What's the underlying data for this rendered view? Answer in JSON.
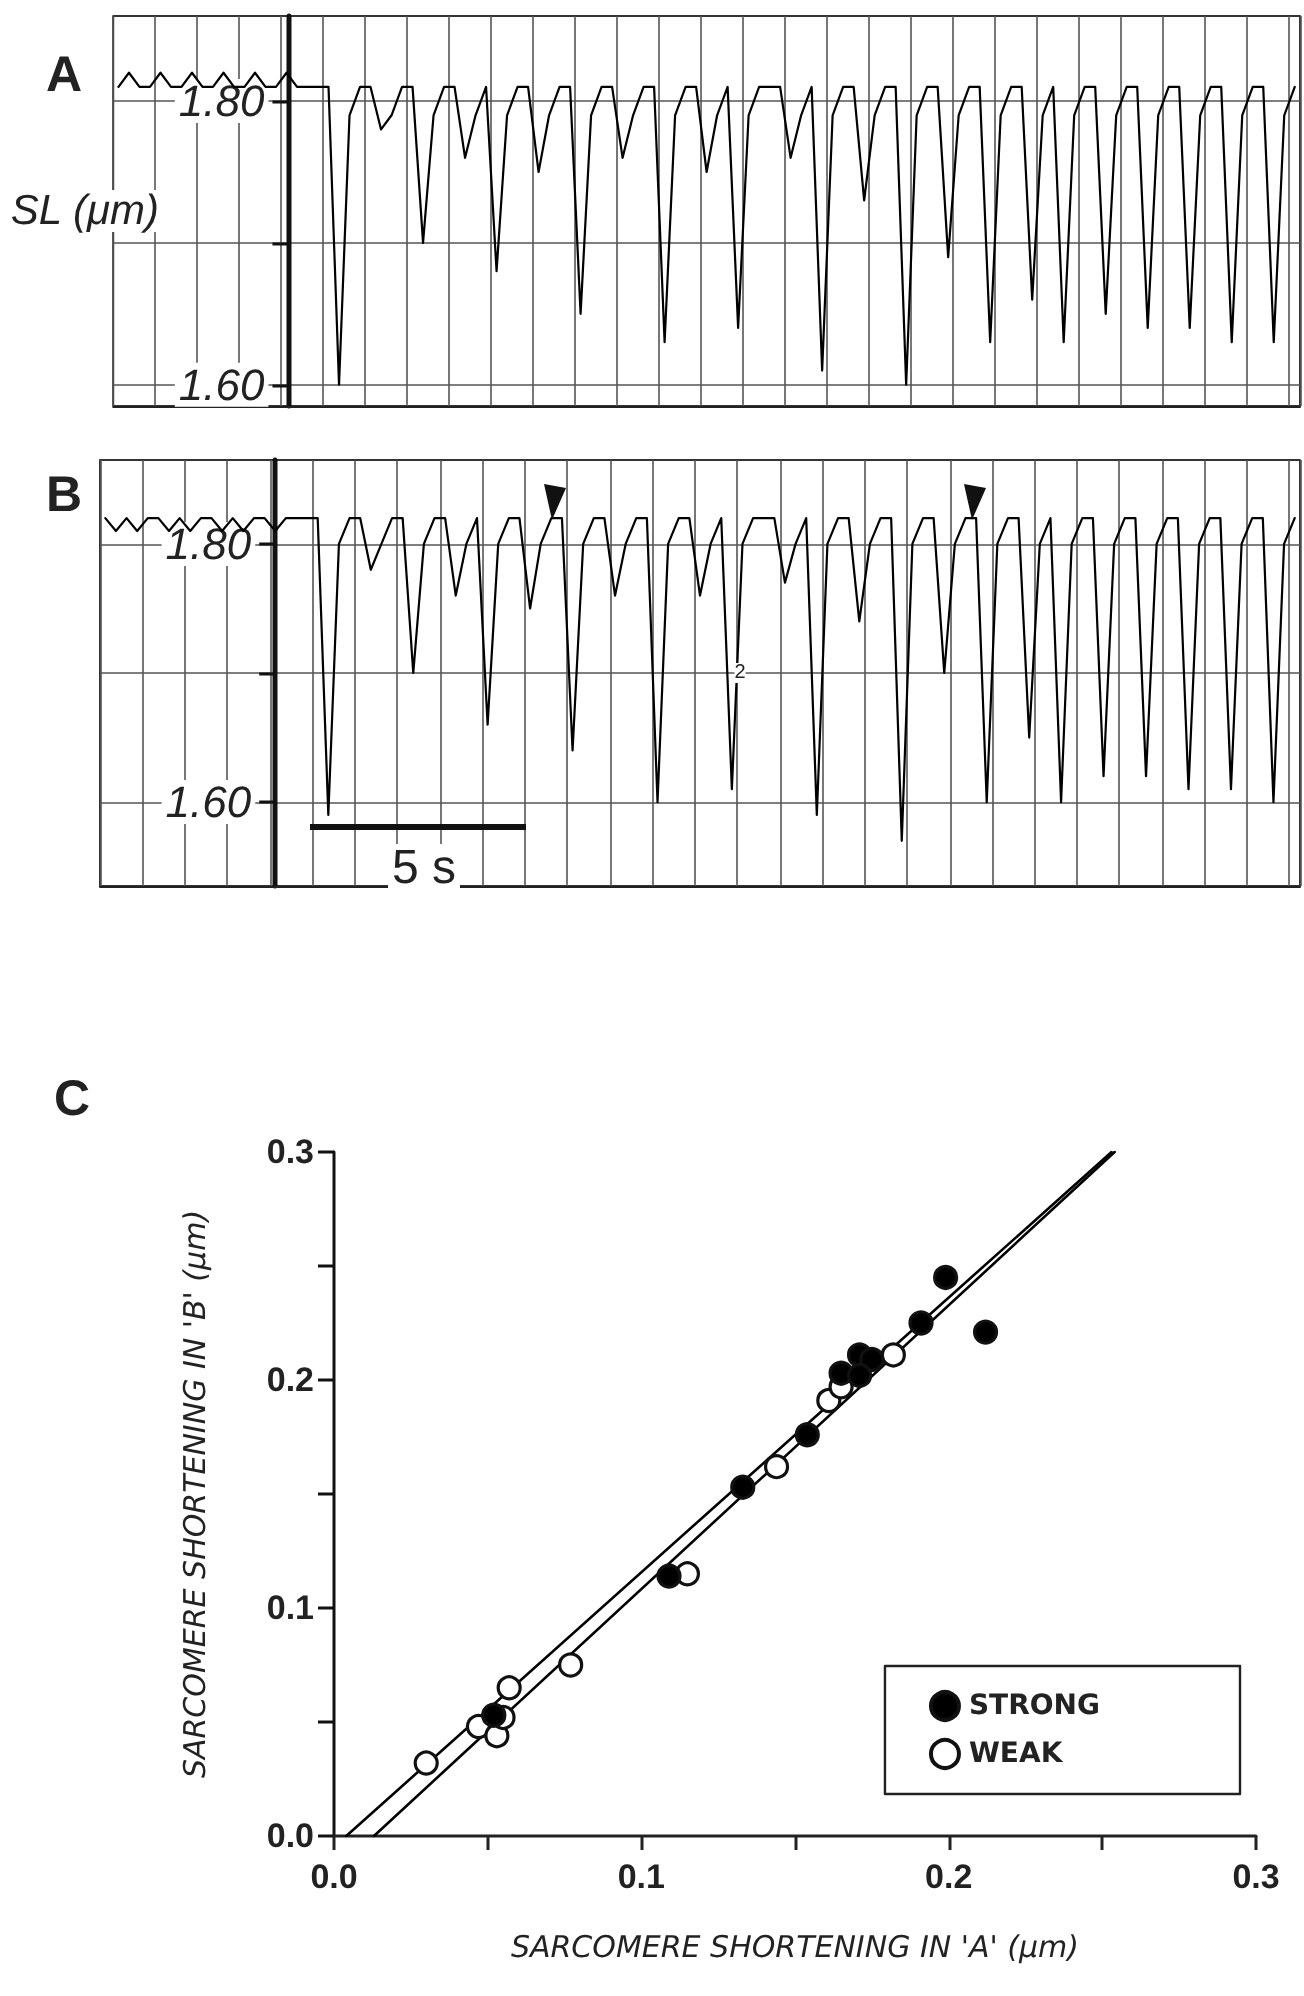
{
  "chart_data": [
    {
      "type": "line",
      "title": "A",
      "ylabel": "SL (μm)",
      "color": "#000000",
      "marker": "none",
      "grid": true,
      "tick_labels": "y",
      "categories": [
        null,
        null,
        null,
        null,
        null,
        null,
        null,
        null,
        null,
        null,
        null,
        null,
        null,
        null,
        null,
        null,
        null,
        null,
        null,
        null,
        null,
        null,
        null,
        null,
        null,
        null,
        null,
        null,
        null,
        null,
        null,
        null,
        null,
        null,
        null,
        null,
        null,
        null,
        null,
        null,
        null,
        null,
        null,
        null,
        null,
        null,
        null,
        null,
        null,
        null,
        null,
        null,
        null,
        null,
        null,
        null,
        null,
        null,
        null,
        null,
        null,
        null,
        null,
        null,
        null,
        null,
        null,
        null,
        null,
        null,
        null,
        null,
        null,
        null,
        null,
        null,
        null,
        null,
        null,
        null,
        null,
        null,
        null,
        null,
        null,
        null,
        null,
        null,
        null,
        null,
        null,
        null,
        null,
        null,
        null,
        null,
        null,
        null,
        null,
        null,
        null,
        null,
        null,
        null,
        null,
        null,
        null,
        null,
        null,
        null,
        null,
        null,
        null
      ],
      "ylim": [
        1.585,
        1.86
      ],
      "yticks": [
        {
          "value": 1.6,
          "label": "1.60"
        },
        {
          "value": 1.7,
          "label": null
        },
        {
          "value": 1.8,
          "label": "1.80"
        }
      ],
      "values": [
        1.81,
        1.82,
        1.81,
        1.81,
        1.82,
        1.81,
        1.81,
        1.82,
        1.81,
        1.81,
        1.82,
        1.81,
        1.81,
        1.82,
        1.81,
        1.81,
        1.82,
        1.81,
        1.81,
        1.81,
        1.81,
        1.6,
        1.79,
        1.81,
        1.81,
        1.78,
        1.79,
        1.81,
        1.81,
        1.7,
        1.79,
        1.81,
        1.81,
        1.76,
        1.79,
        1.81,
        1.68,
        1.79,
        1.81,
        1.81,
        1.75,
        1.79,
        1.81,
        1.81,
        1.65,
        1.79,
        1.81,
        1.81,
        1.76,
        1.79,
        1.81,
        1.81,
        1.63,
        1.79,
        1.81,
        1.81,
        1.75,
        1.79,
        1.81,
        1.64,
        1.79,
        1.81,
        1.81,
        1.81,
        1.76,
        1.79,
        1.81,
        1.61,
        1.79,
        1.81,
        1.81,
        1.73,
        1.79,
        1.81,
        1.81,
        1.6,
        1.79,
        1.81,
        1.81,
        1.69,
        1.79,
        1.81,
        1.81,
        1.63,
        1.79,
        1.81,
        1.81,
        1.66,
        1.79,
        1.81,
        1.63,
        1.79,
        1.81,
        1.81,
        1.65,
        1.79,
        1.81,
        1.81,
        1.64,
        1.79,
        1.81,
        1.81,
        1.64,
        1.79,
        1.81,
        1.81,
        1.63,
        1.79,
        1.81,
        1.81,
        1.63,
        1.79,
        1.81
      ]
    },
    {
      "type": "line",
      "title": "B",
      "color": "#000000",
      "marker": "none",
      "grid": true,
      "tick_labels": "y",
      "annotations": [
        "5 s",
        {
          "text": "2",
          "y": 1.7
        }
      ],
      "categories": [
        null,
        null,
        null,
        null,
        null,
        null,
        null,
        null,
        null,
        null,
        null,
        null,
        null,
        null,
        null,
        null,
        null,
        null,
        null,
        null,
        null,
        null,
        null,
        null,
        null,
        null,
        null,
        null,
        null,
        null,
        null,
        null,
        null,
        null,
        null,
        null,
        null,
        null,
        null,
        null,
        null,
        null,
        null,
        null,
        null,
        null,
        null,
        null,
        null,
        null,
        null,
        null,
        null,
        null,
        null,
        null,
        null,
        null,
        null,
        null,
        null,
        null,
        null,
        null,
        null,
        null,
        null,
        null,
        null,
        null,
        null,
        null,
        null,
        null,
        null,
        null,
        null,
        null,
        null,
        null,
        null,
        null,
        null,
        null,
        null,
        null,
        null,
        null,
        null,
        null,
        null,
        null,
        null,
        null,
        null,
        null,
        null,
        null,
        null,
        null,
        null,
        null,
        null,
        null,
        null,
        null,
        null,
        null,
        null,
        null,
        null,
        null,
        null
      ],
      "ylim": [
        1.535,
        1.865
      ],
      "yticks": [
        {
          "value": 1.6,
          "label": "1.60"
        },
        {
          "value": 1.7,
          "label": null
        },
        {
          "value": 1.8,
          "label": "1.80"
        }
      ],
      "values": [
        1.82,
        1.81,
        1.82,
        1.81,
        1.82,
        1.82,
        1.81,
        1.82,
        1.81,
        1.82,
        1.82,
        1.81,
        1.82,
        1.81,
        1.82,
        1.82,
        1.81,
        1.82,
        1.82,
        1.82,
        1.82,
        1.59,
        1.8,
        1.82,
        1.82,
        1.78,
        1.8,
        1.82,
        1.82,
        1.7,
        1.8,
        1.82,
        1.82,
        1.76,
        1.8,
        1.82,
        1.66,
        1.8,
        1.82,
        1.82,
        1.75,
        1.8,
        1.82,
        1.82,
        1.64,
        1.8,
        1.82,
        1.82,
        1.76,
        1.8,
        1.82,
        1.82,
        1.6,
        1.8,
        1.82,
        1.82,
        1.76,
        1.8,
        1.82,
        1.61,
        1.8,
        1.82,
        1.82,
        1.82,
        1.77,
        1.8,
        1.82,
        1.59,
        1.8,
        1.82,
        1.82,
        1.74,
        1.8,
        1.82,
        1.82,
        1.57,
        1.8,
        1.82,
        1.82,
        1.7,
        1.8,
        1.82,
        1.82,
        1.6,
        1.8,
        1.82,
        1.82,
        1.65,
        1.8,
        1.82,
        1.6,
        1.8,
        1.82,
        1.82,
        1.62,
        1.8,
        1.82,
        1.82,
        1.62,
        1.8,
        1.82,
        1.82,
        1.61,
        1.8,
        1.82,
        1.82,
        1.61,
        1.8,
        1.82,
        1.82,
        1.6,
        1.8,
        1.82
      ]
    },
    {
      "type": "scatter",
      "title": "C",
      "xlabel": "SARCOMERE SHORTENING IN 'A' (μm)",
      "ylabel": "SARCOMERE SHORTENING IN 'B' (μm)",
      "legend": "bottom right",
      "xlim": [
        0,
        0.3
      ],
      "xticks": [
        {
          "value": 0,
          "label": "0.0"
        },
        {
          "value": 0.05,
          "label": null
        },
        {
          "value": 0.1,
          "label": "0.1"
        },
        {
          "value": 0.15,
          "label": null
        },
        {
          "value": 0.2,
          "label": "0.2"
        },
        {
          "value": 0.25,
          "label": null
        },
        {
          "value": 0.3,
          "label": "0.3"
        }
      ],
      "ylim": [
        0,
        0.3
      ],
      "yticks": [
        {
          "value": 0,
          "label": "0.0"
        },
        {
          "value": 0.05,
          "label": null
        },
        {
          "value": 0.1,
          "label": "0.1"
        },
        {
          "value": 0.15,
          "label": null
        },
        {
          "value": 0.2,
          "label": "0.2"
        },
        {
          "value": 0.25,
          "label": null
        },
        {
          "value": 0.3,
          "label": "0.3"
        }
      ],
      "series": [
        {
          "type": "line",
          "color": "#000000",
          "marker": "none",
          "x": [
            0.004,
            0.253
          ],
          "values": [
            0,
            0.3
          ]
        },
        {
          "type": "line",
          "color": "#000000",
          "marker": "none",
          "x": [
            0.013,
            0.254
          ],
          "values": [
            0,
            0.3
          ]
        },
        {
          "name": "STRONG",
          "color": "#000000",
          "marker": "circle",
          "x": [
            0.199,
            0.191,
            0.212,
            0.171,
            0.175,
            0.165,
            0.171,
            0.154,
            0.133,
            0.109,
            0.052
          ],
          "values": [
            0.245,
            0.225,
            0.221,
            0.211,
            0.209,
            0.203,
            0.202,
            0.176,
            0.153,
            0.114,
            0.053
          ]
        },
        {
          "name": "WEAK",
          "color": "#ffffff",
          "marker": "circle",
          "x": [
            0.182,
            0.161,
            0.165,
            0.144,
            0.115,
            0.077,
            0.057,
            0.047,
            0.053,
            0.055,
            0.03
          ],
          "values": [
            0.211,
            0.191,
            0.197,
            0.162,
            0.115,
            0.075,
            0.065,
            0.048,
            0.044,
            0.052,
            0.032
          ]
        }
      ]
    }
  ]
}
